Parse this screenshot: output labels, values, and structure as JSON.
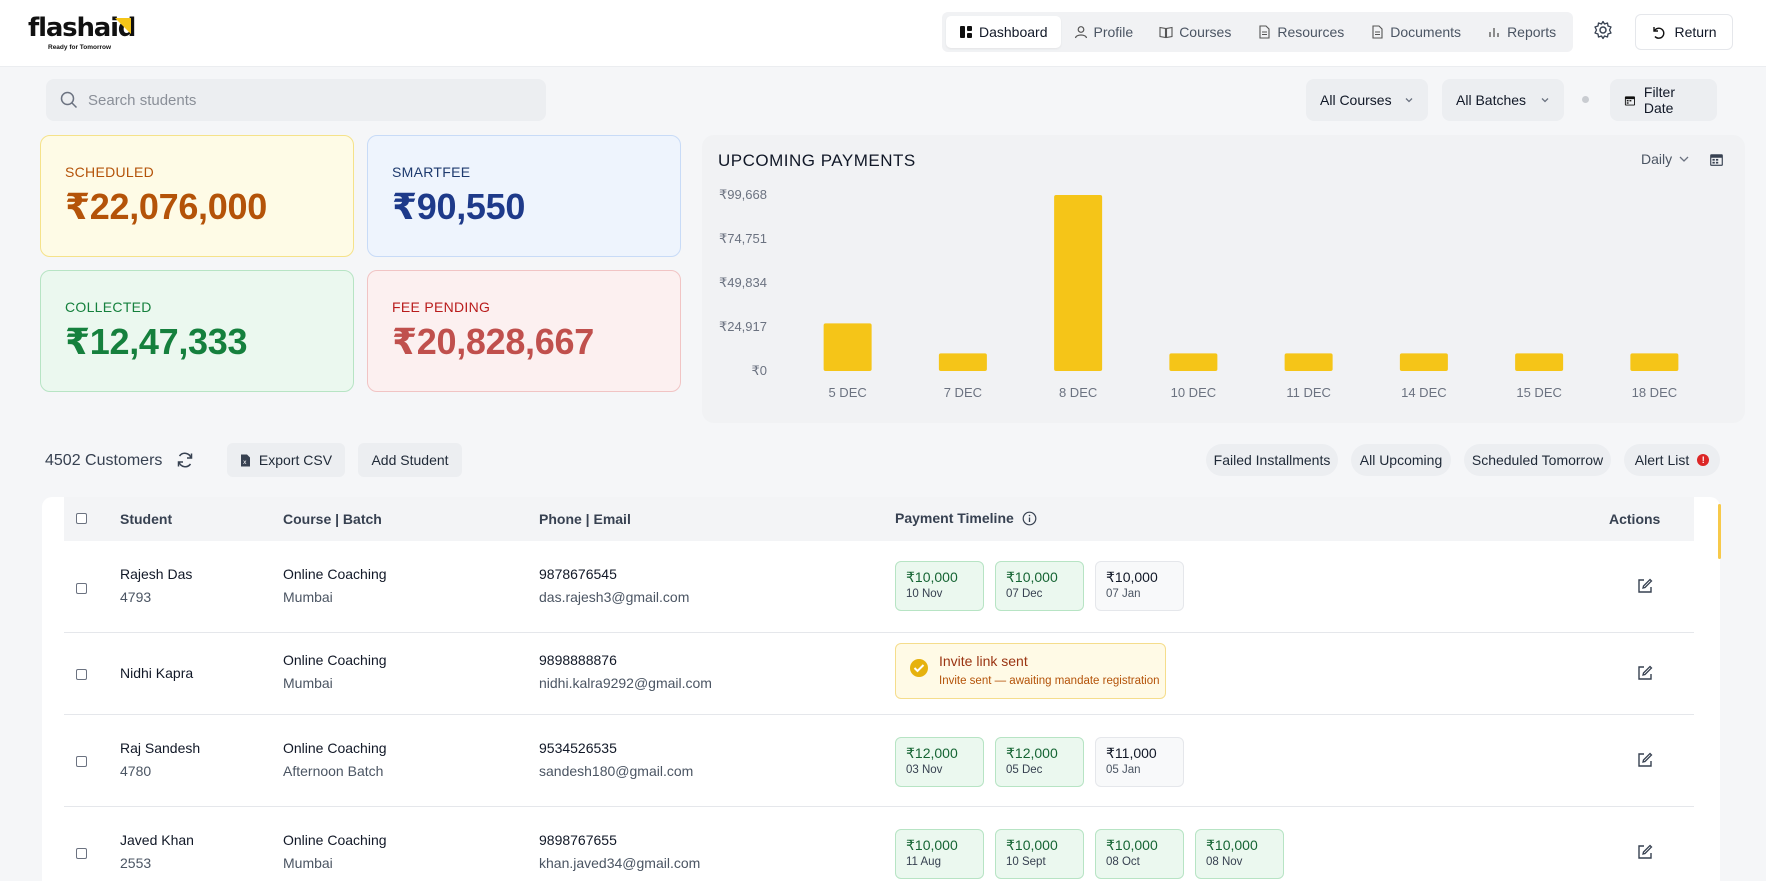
{
  "app": {
    "brand": "flashaid",
    "tagline": "Ready for Tomorrow"
  },
  "nav": {
    "items": [
      {
        "label": "Dashboard",
        "icon": "dashboard-icon",
        "active": true
      },
      {
        "label": "Profile",
        "icon": "user-icon",
        "active": false
      },
      {
        "label": "Courses",
        "icon": "book-icon",
        "active": false
      },
      {
        "label": "Resources",
        "icon": "file-icon",
        "active": false
      },
      {
        "label": "Documents",
        "icon": "document-icon",
        "active": false
      },
      {
        "label": "Reports",
        "icon": "bar-chart-icon",
        "active": false
      }
    ],
    "return_label": "Return"
  },
  "filters": {
    "search_placeholder": "Search students",
    "courses": "All Courses",
    "batches": "All Batches",
    "date": "Filter Date"
  },
  "stats": {
    "scheduled": {
      "label": "SCHEDULED",
      "value": "₹22,076,000"
    },
    "smartfee": {
      "label": "SMARTFEE",
      "value": "₹90,550"
    },
    "collected": {
      "label": "COLLECTED",
      "value": "₹12,47,333"
    },
    "pending": {
      "label": "FEE PENDING",
      "value": "₹20,828,667"
    }
  },
  "chart": {
    "range_label": "Daily"
  },
  "chart_data": {
    "type": "bar",
    "title": "UPCOMING PAYMENTS",
    "categories": [
      "5 DEC",
      "7 DEC",
      "8 DEC",
      "10 DEC",
      "11 DEC",
      "14 DEC",
      "15 DEC",
      "18 DEC"
    ],
    "values": [
      27000,
      10000,
      99668,
      10000,
      10000,
      10000,
      10000,
      10000
    ],
    "y_ticks": [
      0,
      24917,
      49834,
      74751,
      99668
    ],
    "y_tick_labels": [
      "₹0",
      "₹24,917",
      "₹49,834",
      "₹74,751",
      "₹99,668"
    ],
    "ylim": [
      0,
      99668
    ],
    "xlabel": "",
    "ylabel": "",
    "color": "#f5c518"
  },
  "customers": {
    "count_label": "4502 Customers",
    "export_label": "Export CSV",
    "add_label": "Add Student",
    "filters": [
      "Failed Installments",
      "All Upcoming",
      "Scheduled Tomorrow",
      "Alert List"
    ],
    "alert_count": "!"
  },
  "table": {
    "headers": {
      "student": "Student",
      "course": "Course | Batch",
      "contact": "Phone | Email",
      "timeline": "Payment Timeline",
      "actions": "Actions"
    },
    "rows": [
      {
        "name": "Rajesh Das",
        "id": "4793",
        "course": "Online Coaching",
        "batch": "Mumbai",
        "phone": "9878676545",
        "email": "das.rajesh3@gmail.com",
        "payments": [
          {
            "amount": "₹10,000",
            "date": "10 Nov",
            "status": "paid"
          },
          {
            "amount": "₹10,000",
            "date": "07 Dec",
            "status": "paid"
          },
          {
            "amount": "₹10,000",
            "date": "07 Jan",
            "status": "upcoming"
          }
        ]
      },
      {
        "name": "Nidhi Kapra",
        "id": "",
        "course": "Online Coaching",
        "batch": "Mumbai",
        "phone": "9898888876",
        "email": "nidhi.kalra9292@gmail.com",
        "invite": {
          "title": "Invite link sent",
          "subtitle": "Invite sent — awaiting mandate registration"
        }
      },
      {
        "name": "Raj Sandesh",
        "id": "4780",
        "course": "Online Coaching",
        "batch": "Afternoon Batch",
        "phone": "9534526535",
        "email": "sandesh180@gmail.com",
        "payments": [
          {
            "amount": "₹12,000",
            "date": "03 Nov",
            "status": "paid"
          },
          {
            "amount": "₹12,000",
            "date": "05 Dec",
            "status": "paid"
          },
          {
            "amount": "₹11,000",
            "date": "05 Jan",
            "status": "upcoming"
          }
        ]
      },
      {
        "name": "Javed Khan",
        "id": "2553",
        "course": "Online Coaching",
        "batch": "Mumbai",
        "phone": "9898767655",
        "email": "khan.javed34@gmail.com",
        "payments": [
          {
            "amount": "₹10,000",
            "date": "11 Aug",
            "status": "paid"
          },
          {
            "amount": "₹10,000",
            "date": "10 Sept",
            "status": "paid"
          },
          {
            "amount": "₹10,000",
            "date": "08 Oct",
            "status": "paid"
          },
          {
            "amount": "₹10,000",
            "date": "08 Nov",
            "status": "paid"
          }
        ]
      }
    ]
  }
}
